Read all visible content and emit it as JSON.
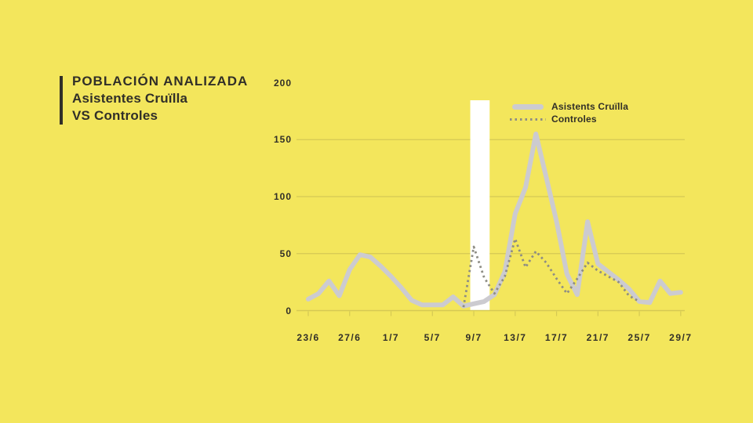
{
  "colors": {
    "background": "#f3e65c",
    "highlight_band": "#ffffff",
    "grid": "#d5c954",
    "text": "#312f28",
    "series_asistents": "#cccbd0",
    "series_controles": "#8e8d84"
  },
  "title": {
    "line1": "POBLACIÓN ANALIZADA",
    "line2": "Asistentes Cruïlla",
    "line3": "VS Controles"
  },
  "legend": [
    {
      "label": "Asistents Cruïlla",
      "style": "solid"
    },
    {
      "label": "Controles",
      "style": "dotted"
    }
  ],
  "chart_data": {
    "type": "line",
    "title": "Población analizada: Asistentes Cruïlla vs Controles",
    "x": [
      "23/6",
      "24/6",
      "25/6",
      "26/6",
      "27/6",
      "28/6",
      "29/6",
      "30/6",
      "1/7",
      "2/7",
      "3/7",
      "4/7",
      "5/7",
      "6/7",
      "7/7",
      "8/7",
      "9/7",
      "10/7",
      "11/7",
      "12/7",
      "13/7",
      "14/7",
      "15/7",
      "16/7",
      "17/7",
      "18/7",
      "19/7",
      "20/7",
      "21/7",
      "22/7",
      "23/7",
      "24/7",
      "25/7",
      "26/7",
      "27/7",
      "28/7",
      "29/7"
    ],
    "x_tick_labels": [
      "23/6",
      "27/6",
      "1/7",
      "5/7",
      "9/7",
      "13/7",
      "17/7",
      "21/7",
      "25/7",
      "29/7"
    ],
    "y_ticks": [
      0,
      50,
      100,
      150,
      200
    ],
    "gridline_values": [
      0,
      50,
      100,
      150
    ],
    "ylim": [
      0,
      200
    ],
    "grid": "horizontal",
    "legend_position": "top-right",
    "highlight_band": {
      "from": "9/7",
      "to": "10/7",
      "color": "#ffffff"
    },
    "series": [
      {
        "name": "Asistents Cruïlla",
        "style": "solid",
        "values": [
          10,
          15,
          26,
          13,
          36,
          49,
          47,
          39,
          30,
          20,
          9,
          5,
          5,
          5,
          12,
          4,
          6,
          8,
          14,
          34,
          85,
          108,
          155,
          117,
          78,
          32,
          14,
          78,
          41,
          34,
          27,
          19,
          8,
          7,
          26,
          15,
          16
        ]
      },
      {
        "name": "Controles",
        "style": "dotted",
        "values": [
          null,
          null,
          null,
          null,
          null,
          null,
          null,
          null,
          null,
          null,
          null,
          null,
          null,
          null,
          null,
          3,
          56,
          29,
          15,
          30,
          63,
          38,
          52,
          42,
          28,
          15,
          28,
          42,
          35,
          30,
          25,
          13,
          8,
          null,
          null,
          null,
          null
        ]
      }
    ]
  }
}
